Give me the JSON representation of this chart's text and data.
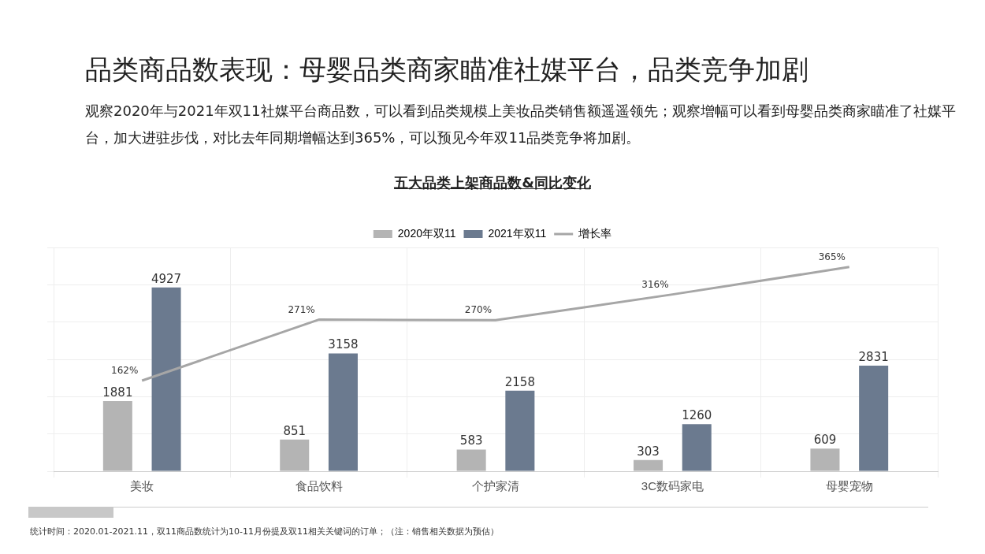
{
  "chart_data": {
    "type": "bar",
    "title": "品类商品数表现：母婴品类商家瞄准社媒平台，品类竞争加剧",
    "subtitle": "观察2020年与2021年双11社媒平台商品数，可以看到品类规模上美妆品类销售额遥遥领先；观察增幅可以看到母婴品类商家瞄准了社媒平台，加大进驻步伐，对比去年同期增幅达到365%，可以预见今年双11品类竞争将加剧。",
    "annotations": [
      "五大品类上架商品数&同比变化",
      "统计时间：2020.01-2021.11，双11商品数统计为10-11月份提及双11相关关键词的订单；（注：销售相关数据为预估）"
    ],
    "categories": [
      "美妆",
      "食品饮料",
      "个护家清",
      "3C数码家电",
      "母婴宠物"
    ],
    "series": [
      {
        "name": "2020年双11",
        "color": "#b4b4b4",
        "values": [
          1881,
          851,
          583,
          303,
          609
        ]
      },
      {
        "name": "2021年双11",
        "color": "#6b7a8f",
        "values": [
          4927,
          3158,
          2158,
          1260,
          2831
        ]
      },
      {
        "name": "增长率",
        "type": "line",
        "axis": "y2",
        "color": "#a6a6a6",
        "values": [
          162,
          271,
          270,
          316,
          365
        ],
        "value_labels": [
          "162%",
          "271%",
          "270%",
          "316%",
          "365%"
        ]
      }
    ],
    "data_labels": true,
    "legend": "top",
    "grid": true
  }
}
